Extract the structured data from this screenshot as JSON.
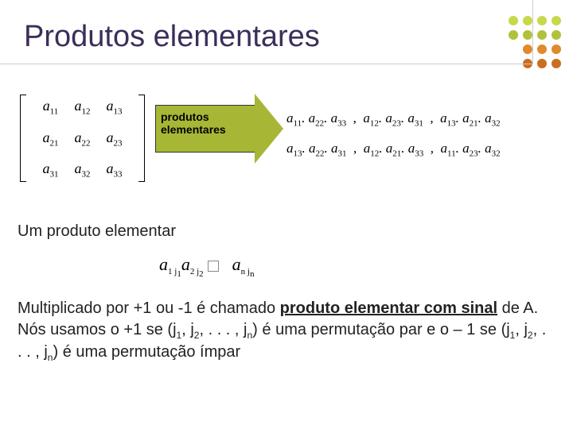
{
  "title": "Produtos elementares",
  "dot_colors": {
    "row1": [
      "#c7d94a",
      "#c7d94a",
      "#c7d94a",
      "#c7d94a"
    ],
    "row2": [
      "#b0c23c",
      "#b0c23c",
      "#b0c23c",
      "#b0c23c"
    ],
    "row3": [
      "#e08a2e",
      "#e08a2e",
      "#e08a2e"
    ],
    "row4": [
      "#c96f1f",
      "#c96f1f",
      "#c96f1f"
    ]
  },
  "matrix": {
    "rows": [
      [
        "a",
        "11",
        "a",
        "12",
        "a",
        "13"
      ],
      [
        "a",
        "21",
        "a",
        "22",
        "a",
        "23"
      ],
      [
        "a",
        "31",
        "a",
        "32",
        "a",
        "33"
      ]
    ]
  },
  "arrow": {
    "line1": "produtos",
    "line2": "elementares"
  },
  "products": {
    "row1": [
      [
        "a",
        "11",
        "a",
        "22",
        "a",
        "33"
      ],
      [
        "a",
        "12",
        "a",
        "23",
        "a",
        "31"
      ],
      [
        "a",
        "13",
        "a",
        "21",
        "a",
        "32"
      ]
    ],
    "row2": [
      [
        "a",
        "13",
        "a",
        "22",
        "a",
        "31"
      ],
      [
        "a",
        "12",
        "a",
        "21",
        "a",
        "33"
      ],
      [
        "a",
        "11",
        "a",
        "23",
        "a",
        "32"
      ]
    ]
  },
  "text_elementar": "Um produto elementar",
  "formula": {
    "terms": [
      [
        "a",
        "1",
        "j",
        "1"
      ],
      [
        "a",
        "2",
        "j",
        "2"
      ],
      [
        "a",
        "n",
        "j",
        "n"
      ]
    ]
  },
  "paragraph": {
    "p1": "Multiplicado por +1 ou -1 é chamado ",
    "u1": "produto elementar com sinal",
    "p2": " de A. Nós usamos o +1 se ",
    "perm1": "(j",
    "s1": "1",
    "c": ", j",
    "s2": "2",
    "c2": ", . . . , j",
    "sn": "n",
    "p3": ") é uma permutação par e o – 1 se ",
    "p4": ") é uma permutação ímpar"
  }
}
